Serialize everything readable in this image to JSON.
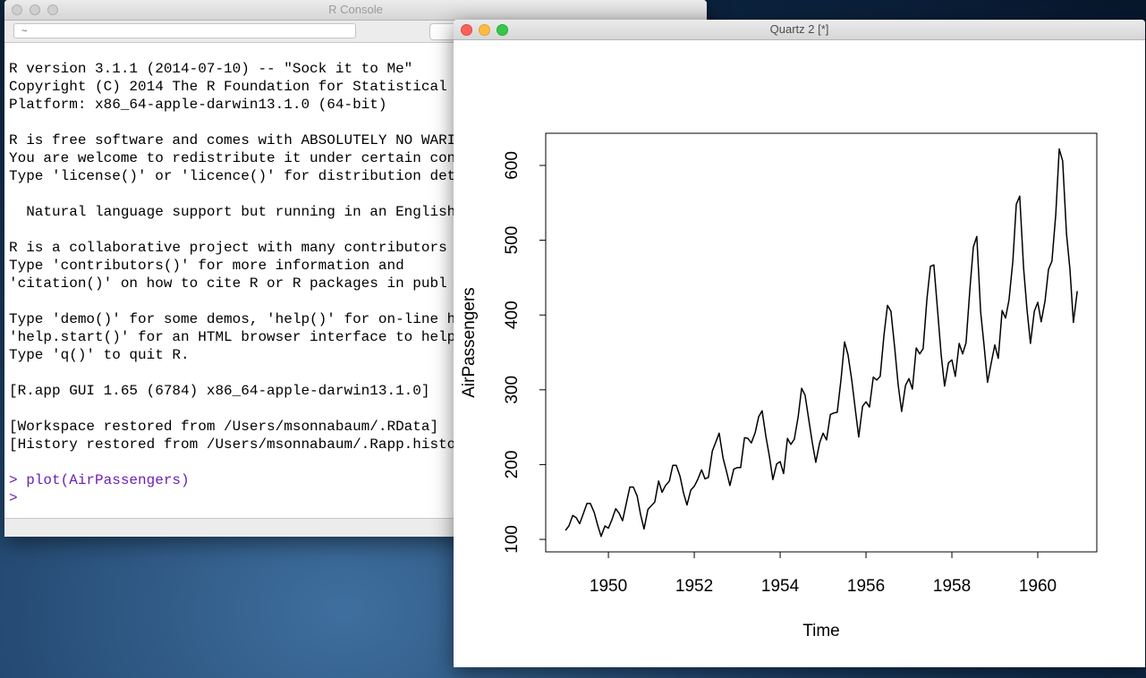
{
  "console": {
    "title": "R Console",
    "path": "~",
    "paragraphs": [
      [
        "R version 3.1.1 (2014-07-10) -- \"Sock it to Me\"",
        "Copyright (C) 2014 The R Foundation for Statistical",
        "Platform: x86_64-apple-darwin13.1.0 (64-bit)"
      ],
      [
        "R is free software and comes with ABSOLUTELY NO WARI",
        "You are welcome to redistribute it under certain con",
        "Type 'license()' or 'licence()' for distribution det"
      ],
      [
        "  Natural language support but running in an English"
      ],
      [
        "R is a collaborative project with many contributors",
        "Type 'contributors()' for more information and",
        "'citation()' on how to cite R or R packages in publ"
      ],
      [
        "Type 'demo()' for some demos, 'help()' for on-line h",
        "'help.start()' for an HTML browser interface to help",
        "Type 'q()' to quit R."
      ],
      [
        "[R.app GUI 1.65 (6784) x86_64-apple-darwin13.1.0]"
      ],
      [
        "[Workspace restored from /Users/msonnabaum/.RData]",
        "[History restored from /Users/msonnabaum/.Rapp.histo"
      ]
    ],
    "commands": [
      "> plot(AirPassengers)",
      ">"
    ]
  },
  "quartz": {
    "title": "Quartz 2 [*]"
  },
  "chart_data": {
    "type": "line",
    "xlabel": "Time",
    "ylabel": "AirPassengers",
    "color": "#000000",
    "x": [
      1949,
      1949.08,
      1949.17,
      1949.25,
      1949.33,
      1949.42,
      1949.5,
      1949.58,
      1949.67,
      1949.75,
      1949.83,
      1949.92,
      1950,
      1950.08,
      1950.17,
      1950.25,
      1950.33,
      1950.42,
      1950.5,
      1950.58,
      1950.67,
      1950.75,
      1950.83,
      1950.92,
      1951,
      1951.08,
      1951.17,
      1951.25,
      1951.33,
      1951.42,
      1951.5,
      1951.58,
      1951.67,
      1951.75,
      1951.83,
      1951.92,
      1952,
      1952.08,
      1952.17,
      1952.25,
      1952.33,
      1952.42,
      1952.5,
      1952.58,
      1952.67,
      1952.75,
      1952.83,
      1952.92,
      1953,
      1953.08,
      1953.17,
      1953.25,
      1953.33,
      1953.42,
      1953.5,
      1953.58,
      1953.67,
      1953.75,
      1953.83,
      1953.92,
      1954,
      1954.08,
      1954.17,
      1954.25,
      1954.33,
      1954.42,
      1954.5,
      1954.58,
      1954.67,
      1954.75,
      1954.83,
      1954.92,
      1955,
      1955.08,
      1955.17,
      1955.25,
      1955.33,
      1955.42,
      1955.5,
      1955.58,
      1955.67,
      1955.75,
      1955.83,
      1955.92,
      1956,
      1956.08,
      1956.17,
      1956.25,
      1956.33,
      1956.42,
      1956.5,
      1956.58,
      1956.67,
      1956.75,
      1956.83,
      1956.92,
      1957,
      1957.08,
      1957.17,
      1957.25,
      1957.33,
      1957.42,
      1957.5,
      1957.58,
      1957.67,
      1957.75,
      1957.83,
      1957.92,
      1958,
      1958.08,
      1958.17,
      1958.25,
      1958.33,
      1958.42,
      1958.5,
      1958.58,
      1958.67,
      1958.75,
      1958.83,
      1958.92,
      1959,
      1959.08,
      1959.17,
      1959.25,
      1959.33,
      1959.42,
      1959.5,
      1959.58,
      1959.67,
      1959.75,
      1959.83,
      1959.92,
      1960,
      1960.08,
      1960.17,
      1960.25,
      1960.33,
      1960.42,
      1960.5,
      1960.58,
      1960.67,
      1960.75,
      1960.83,
      1960.92
    ],
    "values": [
      112,
      118,
      132,
      129,
      121,
      135,
      148,
      148,
      136,
      119,
      104,
      118,
      115,
      126,
      141,
      135,
      125,
      149,
      170,
      170,
      158,
      133,
      114,
      140,
      145,
      150,
      178,
      163,
      172,
      178,
      199,
      199,
      184,
      162,
      146,
      166,
      171,
      180,
      193,
      181,
      183,
      218,
      230,
      242,
      209,
      191,
      172,
      194,
      196,
      196,
      236,
      235,
      229,
      243,
      264,
      272,
      237,
      211,
      180,
      201,
      204,
      188,
      235,
      227,
      234,
      264,
      302,
      293,
      259,
      229,
      203,
      229,
      242,
      233,
      267,
      269,
      270,
      315,
      364,
      347,
      312,
      274,
      237,
      278,
      284,
      277,
      317,
      313,
      318,
      374,
      413,
      405,
      355,
      306,
      271,
      306,
      315,
      301,
      356,
      348,
      355,
      422,
      465,
      467,
      404,
      347,
      305,
      336,
      340,
      318,
      362,
      348,
      363,
      435,
      491,
      505,
      404,
      359,
      310,
      337,
      360,
      342,
      406,
      396,
      420,
      472,
      548,
      559,
      463,
      407,
      362,
      405,
      417,
      391,
      419,
      461,
      472,
      535,
      622,
      606,
      508,
      461,
      390,
      432
    ],
    "xlim": [
      1948.54,
      1961.375
    ],
    "ylim": [
      83.3,
      643
    ],
    "xticks": [
      1950,
      1952,
      1954,
      1956,
      1958,
      1960
    ],
    "yticks": [
      100,
      200,
      300,
      400,
      500,
      600
    ]
  }
}
